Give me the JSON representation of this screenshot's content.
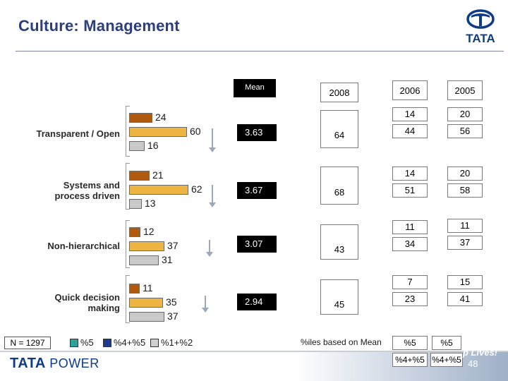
{
  "slide": {
    "title": "Culture: Management",
    "logo_text": "TATA",
    "footer_brand": "TATA",
    "footer_power": "POWER",
    "footer_tag": "p Lives!",
    "page_number": "48",
    "sample_label": "N = 1297"
  },
  "legend": [
    {
      "key": "s5",
      "label": "%5",
      "color": "#2aa39a"
    },
    {
      "key": "s45",
      "label": "%4+%5",
      "color": "#1f3b8f"
    },
    {
      "key": "s12",
      "label": "%1+%2",
      "color": "#d0d0d0"
    }
  ],
  "table": {
    "mean_header": "Mean",
    "headers": [
      "2008",
      "2006",
      "2005"
    ],
    "footnote": "%iles based on Mean",
    "foot_row1": [
      "%5",
      "%5"
    ],
    "foot_row2": [
      "%4+%5",
      "%4+%5"
    ],
    "rows": [
      {
        "mean": "3.63",
        "y2008": "64",
        "y2006_top": "14",
        "y2005_top": "20",
        "y2006_bottom": "44",
        "y2005_bottom": "56"
      },
      {
        "mean": "3.67",
        "y2008": "68",
        "y2006_top": "14",
        "y2005_top": "20",
        "y2006_bottom": "51",
        "y2005_bottom": "58"
      },
      {
        "mean": "3.07",
        "y2008": "43",
        "y2006_top": "11",
        "y2005_top": "11",
        "y2006_bottom": "34",
        "y2005_bottom": "37"
      },
      {
        "mean": "2.94",
        "y2008": "45",
        "y2006_top": "7",
        "y2005_top": "15",
        "y2006_bottom": "23",
        "y2005_bottom": "41"
      }
    ]
  },
  "chart_data": {
    "type": "bar",
    "orientation": "horizontal",
    "categories": [
      "Transparent / Open",
      "Systems and process driven",
      "Non-hierarchical",
      "Quick decision making"
    ],
    "series": [
      {
        "name": "%5",
        "key": "s5",
        "values": [
          24,
          21,
          12,
          11
        ],
        "color": "#b05a10"
      },
      {
        "name": "%4+%5",
        "key": "s45",
        "values": [
          60,
          62,
          37,
          35
        ],
        "color": "#eeb444"
      },
      {
        "name": "%1+%2",
        "key": "s12",
        "values": [
          16,
          13,
          31,
          37
        ],
        "color": "#c9c9c9"
      }
    ]
  }
}
